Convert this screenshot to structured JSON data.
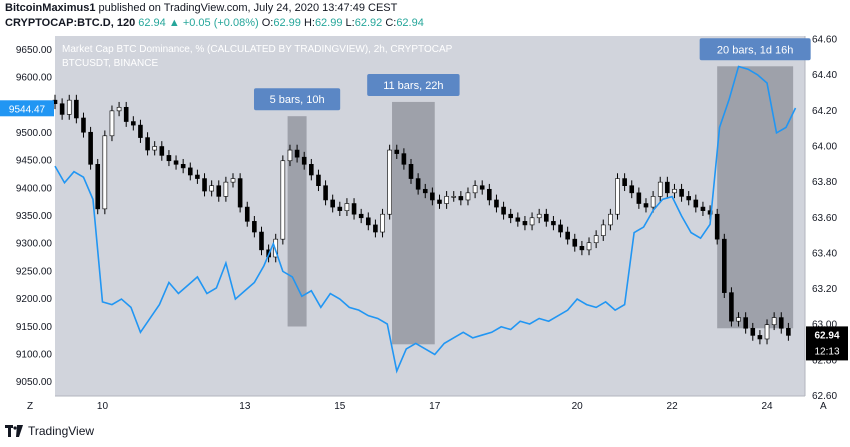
{
  "header": {
    "author": "BitcoinMaximus1",
    "published": "published on TradingView.com, July 24, 2020 13:47:49 CEST",
    "symbol": "CRYPTOCAP:BTC.D, 120",
    "last": "62.94",
    "change": "+0.05 (+0.08%)",
    "o_label": "O:",
    "o": "62.99",
    "h_label": "H:",
    "h": "62.99",
    "l_label": "L:",
    "l": "62.92",
    "c_label": "C:",
    "c": "62.94"
  },
  "footer": {
    "brand": "TradingView"
  },
  "colors": {
    "background": "#d1d4dc",
    "up": "#ffffff",
    "down": "#000000",
    "btc_line": "#2196f3",
    "highlight": "#9598a1",
    "callout": "#5b87c5",
    "price_tag": "#2196f3"
  },
  "chart_data": {
    "type": "line",
    "title": "Market Cap BTC Dominance, % (CALCULATED BY TRADINGVIEW), 2h, CRYPTOCAP",
    "subtitle": "BTCUSDT, BINANCE",
    "x_ticks": [
      "10",
      "13",
      "15",
      "17",
      "20",
      "22",
      "24"
    ],
    "x_range": [
      "Jul 9 2020",
      "Jul 24 2020"
    ],
    "left_axis": {
      "ticks": [
        "9650.00",
        "9600.00",
        "9550.00",
        "9500.00",
        "9450.00",
        "9400.00",
        "9350.00",
        "9300.00",
        "9250.00",
        "9200.00",
        "9150.00",
        "9100.00",
        "9050.00"
      ],
      "range": [
        9025,
        9675
      ],
      "last_label": "9544.47"
    },
    "right_axis": {
      "ticks": [
        "64.60",
        "64.40",
        "64.20",
        "64.00",
        "63.80",
        "63.60",
        "63.40",
        "63.20",
        "63.00",
        "62.80",
        "62.60"
      ],
      "range": [
        62.6,
        64.62
      ],
      "last_label": "62.94",
      "countdown": "12:13"
    },
    "annotations": [
      {
        "label": "5 bars, 10h",
        "from_day": 13.9,
        "to_day": 14.3,
        "hi": 64.17,
        "lo": 62.99
      },
      {
        "label": "11 bars, 22h",
        "from_day": 16.1,
        "to_day": 17.0,
        "hi": 64.25,
        "lo": 62.89
      },
      {
        "label": "20 bars, 1d 16h",
        "from_day": 22.95,
        "to_day": 24.55,
        "hi": 64.45,
        "lo": 62.98
      }
    ],
    "series": [
      {
        "kind": "line",
        "axis": "left",
        "x": [
          9.0,
          9.2,
          9.4,
          9.6,
          9.8,
          10.0,
          10.2,
          10.4,
          10.6,
          10.8,
          11.0,
          11.2,
          11.4,
          11.6,
          11.8,
          12.0,
          12.2,
          12.4,
          12.6,
          12.8,
          13.0,
          13.2,
          13.4,
          13.6,
          13.8,
          14.0,
          14.2,
          14.4,
          14.6,
          14.8,
          15.0,
          15.2,
          15.4,
          15.6,
          15.8,
          16.0,
          16.2,
          16.4,
          16.6,
          16.8,
          17.0,
          17.2,
          17.4,
          17.6,
          17.8,
          18.0,
          18.2,
          18.4,
          18.6,
          18.8,
          19.0,
          19.2,
          19.4,
          19.6,
          19.8,
          20.0,
          20.2,
          20.4,
          20.6,
          20.8,
          21.0,
          21.2,
          21.4,
          21.6,
          21.8,
          22.0,
          22.2,
          22.4,
          22.6,
          22.8,
          23.0,
          23.2,
          23.4,
          23.6,
          23.8,
          24.0,
          24.2,
          24.4,
          24.6
        ],
        "values": [
          9440,
          9410,
          9430,
          9420,
          9380,
          9195,
          9190,
          9200,
          9185,
          9140,
          9165,
          9190,
          9230,
          9210,
          9225,
          9240,
          9210,
          9220,
          9265,
          9200,
          9215,
          9230,
          9260,
          9300,
          9250,
          9240,
          9205,
          9215,
          9185,
          9210,
          9200,
          9185,
          9180,
          9170,
          9165,
          9155,
          9070,
          9110,
          9120,
          9110,
          9100,
          9120,
          9130,
          9140,
          9130,
          9135,
          9140,
          9150,
          9145,
          9160,
          9155,
          9165,
          9160,
          9170,
          9180,
          9200,
          9190,
          9185,
          9195,
          9180,
          9190,
          9320,
          9330,
          9360,
          9380,
          9385,
          9350,
          9320,
          9310,
          9335,
          9510,
          9560,
          9620,
          9615,
          9605,
          9590,
          9500,
          9510,
          9545
        ],
        "last": 9544.47
      },
      {
        "kind": "candles",
        "axis": "right",
        "x": [
          9.0,
          9.15,
          9.3,
          9.45,
          9.6,
          9.75,
          9.9,
          10.05,
          10.2,
          10.35,
          10.5,
          10.65,
          10.8,
          10.95,
          11.1,
          11.25,
          11.4,
          11.55,
          11.7,
          11.85,
          12.0,
          12.15,
          12.3,
          12.45,
          12.6,
          12.75,
          12.9,
          13.05,
          13.2,
          13.35,
          13.5,
          13.65,
          13.8,
          13.95,
          14.1,
          14.25,
          14.4,
          14.55,
          14.7,
          14.85,
          15.0,
          15.15,
          15.3,
          15.45,
          15.6,
          15.75,
          15.9,
          16.05,
          16.2,
          16.35,
          16.5,
          16.65,
          16.8,
          16.95,
          17.1,
          17.25,
          17.4,
          17.55,
          17.7,
          17.85,
          18.0,
          18.15,
          18.3,
          18.45,
          18.6,
          18.75,
          18.9,
          19.05,
          19.2,
          19.35,
          19.5,
          19.65,
          19.8,
          19.95,
          20.1,
          20.25,
          20.4,
          20.55,
          20.7,
          20.85,
          21.0,
          21.15,
          21.3,
          21.45,
          21.6,
          21.75,
          21.9,
          22.05,
          22.2,
          22.35,
          22.5,
          22.65,
          22.8,
          22.95,
          23.1,
          23.25,
          23.4,
          23.55,
          23.7,
          23.85,
          24.0,
          24.15,
          24.3,
          24.45
        ],
        "close": [
          64.24,
          64.18,
          64.26,
          64.16,
          64.08,
          63.9,
          63.65,
          64.06,
          64.2,
          64.22,
          64.14,
          64.12,
          64.05,
          63.98,
          64.0,
          63.95,
          63.92,
          63.9,
          63.88,
          63.84,
          63.82,
          63.75,
          63.78,
          63.72,
          63.8,
          63.82,
          63.66,
          63.58,
          63.52,
          63.42,
          63.38,
          63.48,
          63.92,
          63.98,
          63.94,
          63.9,
          63.84,
          63.78,
          63.7,
          63.66,
          63.64,
          63.68,
          63.62,
          63.6,
          63.56,
          63.52,
          63.62,
          63.98,
          63.96,
          63.9,
          63.82,
          63.76,
          63.74,
          63.7,
          63.68,
          63.72,
          63.72,
          63.7,
          63.74,
          63.78,
          63.76,
          63.7,
          63.66,
          63.62,
          63.6,
          63.58,
          63.56,
          63.6,
          63.62,
          63.58,
          63.56,
          63.52,
          63.48,
          63.44,
          63.42,
          63.46,
          63.5,
          63.56,
          63.62,
          63.82,
          63.78,
          63.74,
          63.68,
          63.66,
          63.72,
          63.8,
          63.74,
          63.76,
          63.72,
          63.7,
          63.66,
          63.64,
          63.62,
          63.48,
          63.18,
          63.02,
          63.04,
          62.98,
          62.94,
          62.92,
          63.0,
          63.04,
          62.98,
          62.94
        ]
      }
    ]
  }
}
